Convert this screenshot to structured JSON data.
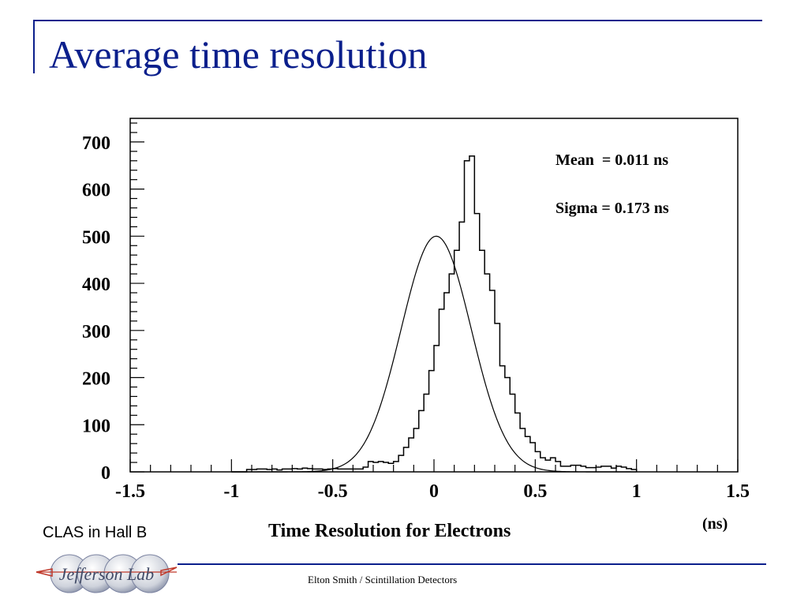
{
  "slide": {
    "title": "Average time resolution",
    "side_label": "CLAS in Hall B",
    "footer": "Elton Smith / Scintillation Detectors",
    "logo_text": "Jefferson Lab",
    "accent_color": "#0b1f8c"
  },
  "chart_data": {
    "type": "histogram",
    "title": "",
    "xlabel": "Time Resolution for Electrons",
    "xunit": "(ns)",
    "ylabel": "",
    "xlim": [
      -1.5,
      1.5
    ],
    "ylim": [
      0,
      750
    ],
    "x_ticks": [
      -1.5,
      -1,
      -0.5,
      0,
      0.5,
      1,
      1.5
    ],
    "x_tick_labels": [
      "-1.5",
      "-1",
      "-0.5",
      "0",
      "0.5",
      "1",
      "1.5"
    ],
    "y_ticks": [
      0,
      100,
      200,
      300,
      400,
      500,
      600,
      700
    ],
    "y_tick_labels": [
      "0",
      "100",
      "200",
      "300",
      "400",
      "500",
      "600",
      "700"
    ],
    "bin_width": 0.025,
    "bins_start": -1.0,
    "counts": [
      0,
      0,
      0,
      5,
      5,
      6,
      6,
      5,
      6,
      4,
      6,
      6,
      7,
      6,
      8,
      7,
      6,
      6,
      5,
      6,
      7,
      6,
      6,
      6,
      6,
      6,
      10,
      22,
      20,
      22,
      20,
      18,
      22,
      35,
      52,
      72,
      92,
      130,
      165,
      215,
      268,
      345,
      380,
      420,
      470,
      530,
      660,
      670,
      548,
      470,
      420,
      385,
      315,
      225,
      200,
      165,
      125,
      92,
      75,
      62,
      43,
      30,
      25,
      30,
      22,
      12,
      12,
      14,
      14,
      12,
      9,
      9,
      10,
      12,
      12,
      8,
      12,
      10,
      7,
      5
    ],
    "fit": {
      "type": "gaussian",
      "amplitude": 500,
      "mean": 0.011,
      "sigma": 0.173
    },
    "annotations": [
      {
        "label": "Mean  = 0.011 ns"
      },
      {
        "label": "Sigma = 0.173 ns"
      }
    ],
    "grid": false,
    "legend": "none"
  }
}
